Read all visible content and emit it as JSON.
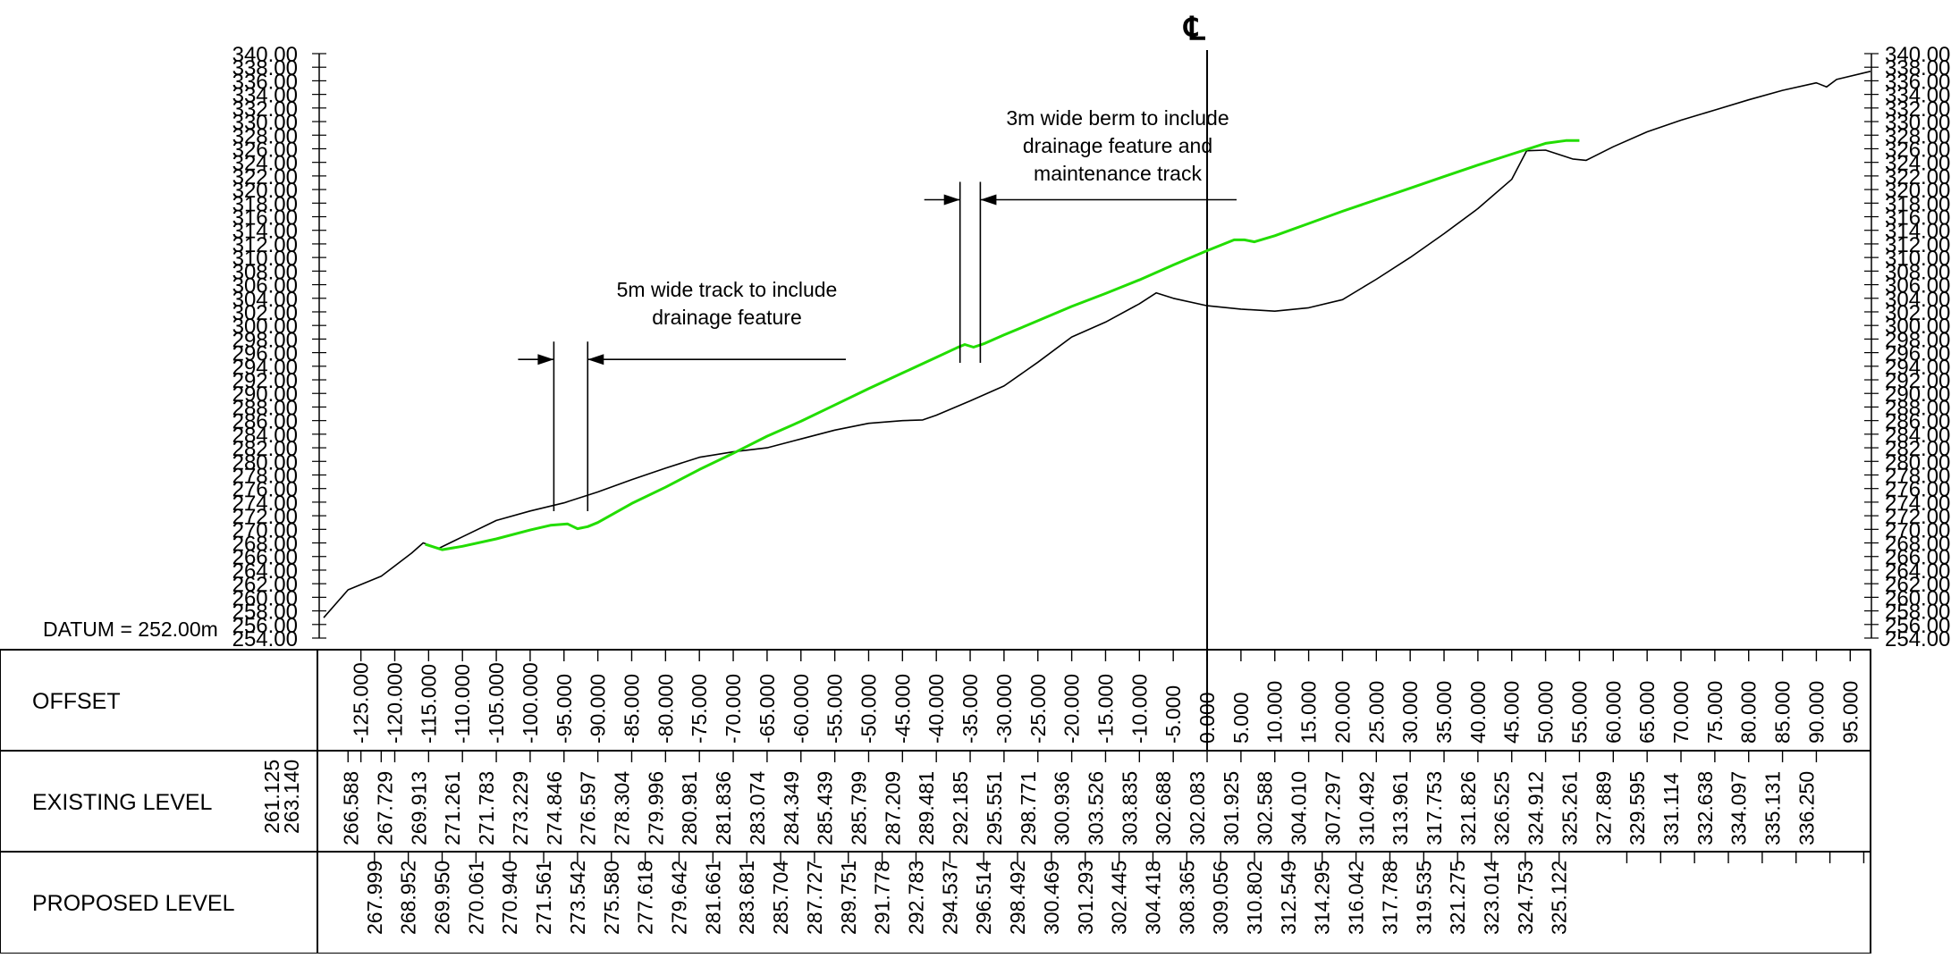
{
  "datum_label": "DATUM = 252.00m",
  "centerline_symbol": "℄",
  "y_axis": {
    "min": 254,
    "max": 340,
    "step": 2,
    "labels": [
      "254.00",
      "256.00",
      "258.00",
      "260.00",
      "262.00",
      "264.00",
      "266.00",
      "268.00",
      "270.00",
      "272.00",
      "274.00",
      "276.00",
      "278.00",
      "280.00",
      "282.00",
      "284.00",
      "286.00",
      "288.00",
      "290.00",
      "292.00",
      "294.00",
      "296.00",
      "298.00",
      "300.00",
      "302.00",
      "304.00",
      "306.00",
      "308.00",
      "310.00",
      "312.00",
      "314.00",
      "316.00",
      "318.00",
      "320.00",
      "322.00",
      "324.00",
      "326.00",
      "328.00",
      "330.00",
      "332.00",
      "334.00",
      "336.00",
      "338.00",
      "340.00"
    ]
  },
  "x_axis": {
    "min": -130.5,
    "max": 98.0
  },
  "annotations": {
    "track": {
      "lines": [
        "5m wide track to include",
        "drainage feature"
      ],
      "offsets": [
        -96.5,
        -91.5
      ],
      "arrow_y": 295
    },
    "berm": {
      "lines": [
        "3m wide berm to include",
        "drainage feature and",
        "maintenance track"
      ],
      "offsets": [
        -36.5,
        -33.5
      ],
      "arrow_y": 318.5
    }
  },
  "table": {
    "rows": {
      "offset": "OFFSET",
      "existing": "EXISTING LEVEL",
      "proposed": "PROPOSED LEVEL"
    },
    "offsets": [
      "-125.000",
      "-120.000",
      "-115.000",
      "-110.000",
      "-105.000",
      "-100.000",
      "-95.000",
      "-90.000",
      "-85.000",
      "-80.000",
      "-75.000",
      "-70.000",
      "-65.000",
      "-60.000",
      "-55.000",
      "-50.000",
      "-45.000",
      "-40.000",
      "-35.000",
      "-30.000",
      "-25.000",
      "-20.000",
      "-15.000",
      "-10.000",
      "-5.000",
      "0.000",
      "5.000",
      "10.000",
      "15.000",
      "20.000",
      "25.000",
      "30.000",
      "35.000",
      "40.000",
      "45.000",
      "50.000",
      "55.000",
      "60.000",
      "65.000",
      "70.000",
      "75.000",
      "80.000",
      "85.000",
      "90.000",
      "95.000"
    ],
    "existing_start": [
      "261.125",
      "263.140"
    ],
    "existing": [
      "266.588",
      "267.729",
      "269.913",
      "271.261",
      "271.783",
      "273.229",
      "274.846",
      "276.597",
      "278.304",
      "279.996",
      "280.981",
      "281.836",
      "283.074",
      "284.349",
      "285.439",
      "285.799",
      "287.209",
      "289.481",
      "292.185",
      "295.551",
      "298.771",
      "300.936",
      "303.526",
      "303.835",
      "302.688",
      "302.083",
      "301.925",
      "302.588",
      "304.010",
      "307.297",
      "310.492",
      "313.961",
      "317.753",
      "321.826",
      "326.525",
      "324.912",
      "325.261",
      "327.889",
      "329.595",
      "331.114",
      "332.638",
      "334.097",
      "335.131",
      "336.250"
    ],
    "proposed": [
      "267.999",
      "268.952",
      "269.950",
      "270.061",
      "270.940",
      "271.561",
      "273.542",
      "275.580",
      "277.618",
      "279.642",
      "281.661",
      "283.681",
      "285.704",
      "287.727",
      "289.751",
      "291.778",
      "292.783",
      "294.537",
      "296.514",
      "298.492",
      "300.469",
      "301.293",
      "302.445",
      "304.418",
      "308.365",
      "309.056",
      "310.802",
      "312.549",
      "314.295",
      "316.042",
      "317.788",
      "319.535",
      "321.275",
      "323.014",
      "324.753",
      "325.122"
    ]
  },
  "chart_data": {
    "type": "line",
    "xlabel": "OFFSET",
    "ylabel": "",
    "ylim": [
      254,
      340
    ],
    "series": [
      {
        "name": "EXISTING LEVEL",
        "color": "#000000",
        "points": [
          [
            -130.5,
            257.0
          ],
          [
            -126.9,
            261.1
          ],
          [
            -122.0,
            263.1
          ],
          [
            -117.5,
            266.5
          ],
          [
            -115.8,
            268.0
          ],
          [
            -113.5,
            267.2
          ],
          [
            -110.0,
            268.9
          ],
          [
            -105.0,
            271.3
          ],
          [
            -100.0,
            272.7
          ],
          [
            -95.0,
            273.9
          ],
          [
            -90.0,
            275.5
          ],
          [
            -85.0,
            277.3
          ],
          [
            -80.0,
            279.0
          ],
          [
            -75.0,
            280.6
          ],
          [
            -70.0,
            281.4
          ],
          [
            -65.0,
            282.0
          ],
          [
            -60.0,
            283.3
          ],
          [
            -55.0,
            284.6
          ],
          [
            -50.0,
            285.6
          ],
          [
            -45.0,
            286.0
          ],
          [
            -42.0,
            286.1
          ],
          [
            -40.0,
            286.8
          ],
          [
            -35.0,
            288.9
          ],
          [
            -30.0,
            291.1
          ],
          [
            -25.0,
            294.6
          ],
          [
            -20.0,
            298.3
          ],
          [
            -15.0,
            300.5
          ],
          [
            -10.0,
            303.2
          ],
          [
            -7.5,
            304.8
          ],
          [
            -5.0,
            304.0
          ],
          [
            0.0,
            302.9
          ],
          [
            5.0,
            302.4
          ],
          [
            10.0,
            302.1
          ],
          [
            15.0,
            302.6
          ],
          [
            20.0,
            303.8
          ],
          [
            25.0,
            306.8
          ],
          [
            30.0,
            310.0
          ],
          [
            35.0,
            313.5
          ],
          [
            40.0,
            317.2
          ],
          [
            45.0,
            321.5
          ],
          [
            47.2,
            325.7
          ],
          [
            50.0,
            325.8
          ],
          [
            54.0,
            324.5
          ],
          [
            56.0,
            324.3
          ],
          [
            60.0,
            326.3
          ],
          [
            65.0,
            328.5
          ],
          [
            70.0,
            330.2
          ],
          [
            75.0,
            331.7
          ],
          [
            80.0,
            333.2
          ],
          [
            85.0,
            334.6
          ],
          [
            90.0,
            335.7
          ],
          [
            91.5,
            335.1
          ],
          [
            93.0,
            336.2
          ],
          [
            98.0,
            337.4
          ]
        ]
      },
      {
        "name": "PROPOSED LEVEL",
        "color": "#22dd00",
        "points": [
          [
            -115.5,
            267.8
          ],
          [
            -113.0,
            267.0
          ],
          [
            -110.0,
            267.5
          ],
          [
            -105.0,
            268.6
          ],
          [
            -100.0,
            269.9
          ],
          [
            -97.0,
            270.6
          ],
          [
            -94.5,
            270.8
          ],
          [
            -93.0,
            270.1
          ],
          [
            -91.5,
            270.4
          ],
          [
            -90.0,
            271.0
          ],
          [
            -85.0,
            273.8
          ],
          [
            -80.0,
            276.2
          ],
          [
            -75.0,
            278.8
          ],
          [
            -70.0,
            281.2
          ],
          [
            -65.0,
            283.7
          ],
          [
            -60.0,
            285.9
          ],
          [
            -55.0,
            288.3
          ],
          [
            -50.0,
            290.7
          ],
          [
            -45.0,
            293.0
          ],
          [
            -40.0,
            295.3
          ],
          [
            -37.0,
            296.7
          ],
          [
            -35.8,
            297.2
          ],
          [
            -34.5,
            296.8
          ],
          [
            -33.0,
            297.3
          ],
          [
            -30.0,
            298.6
          ],
          [
            -25.0,
            300.7
          ],
          [
            -20.0,
            302.8
          ],
          [
            -15.0,
            304.7
          ],
          [
            -10.0,
            306.7
          ],
          [
            -5.0,
            308.9
          ],
          [
            0.0,
            311.0
          ],
          [
            4.0,
            312.6
          ],
          [
            5.5,
            312.6
          ],
          [
            7.0,
            312.3
          ],
          [
            10.0,
            313.2
          ],
          [
            15.0,
            315.0
          ],
          [
            20.0,
            316.8
          ],
          [
            25.0,
            318.5
          ],
          [
            30.0,
            320.2
          ],
          [
            35.0,
            321.9
          ],
          [
            40.0,
            323.6
          ],
          [
            45.0,
            325.2
          ],
          [
            50.0,
            326.8
          ],
          [
            53.0,
            327.2
          ],
          [
            55.0,
            327.2
          ]
        ]
      }
    ]
  }
}
